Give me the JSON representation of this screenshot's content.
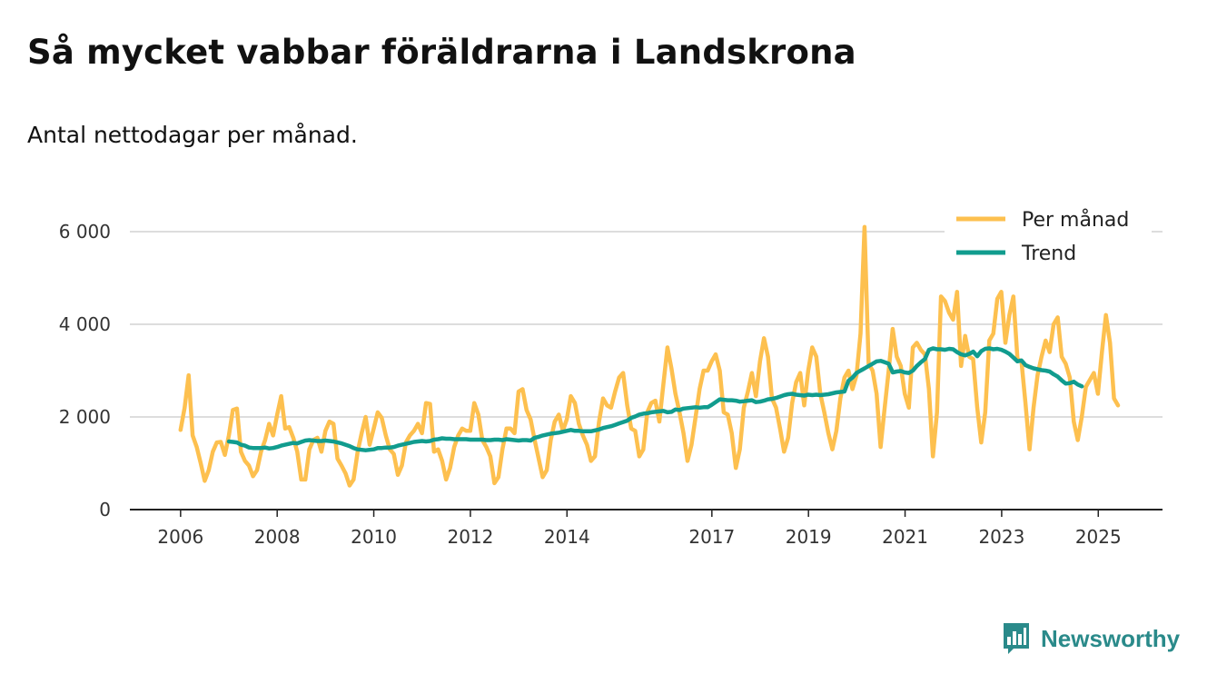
{
  "header": {
    "title": "Så mycket vabbar föräldrarna i Landskrona",
    "subtitle": "Antal nettodagar per månad."
  },
  "brand": {
    "name": "Newsworthy",
    "icon": "newsworthy-logo-icon",
    "color": "#2a8a8a"
  },
  "colors": {
    "monthly": "#fdc04f",
    "trend": "#119c8e",
    "grid": "#dddddd",
    "axis": "#222222"
  },
  "chart_data": {
    "type": "line",
    "title": "Så mycket vabbar föräldrarna i Landskrona",
    "subtitle": "Antal nettodagar per månad.",
    "xlabel": "",
    "ylabel": "",
    "ylim": [
      0,
      6000
    ],
    "xlim": [
      2004.95,
      2026.33
    ],
    "grid": true,
    "legend_position": "top-right",
    "y_ticks": [
      {
        "value": 0,
        "label": "0"
      },
      {
        "value": 2000,
        "label": "2 000"
      },
      {
        "value": 4000,
        "label": "4 000"
      },
      {
        "value": 6000,
        "label": "6 000"
      }
    ],
    "x_ticks": [
      {
        "value": 2006,
        "label": "2006"
      },
      {
        "value": 2008,
        "label": "2008"
      },
      {
        "value": 2010,
        "label": "2010"
      },
      {
        "value": 2012,
        "label": "2012"
      },
      {
        "value": 2014,
        "label": "2014"
      },
      {
        "value": 2017,
        "label": "2017"
      },
      {
        "value": 2019,
        "label": "2019"
      },
      {
        "value": 2021,
        "label": "2021"
      },
      {
        "value": 2023,
        "label": "2023"
      },
      {
        "value": 2025,
        "label": "2025"
      }
    ],
    "series": [
      {
        "name": "Per månad",
        "color": "#fdc04f",
        "start": 2006.0,
        "step": 0.0833,
        "values": [
          1720,
          2200,
          2900,
          1600,
          1350,
          1000,
          620,
          850,
          1250,
          1450,
          1460,
          1180,
          1600,
          2150,
          2180,
          1250,
          1050,
          950,
          720,
          850,
          1250,
          1500,
          1850,
          1600,
          2050,
          2450,
          1750,
          1780,
          1550,
          1250,
          650,
          650,
          1300,
          1500,
          1550,
          1250,
          1700,
          1900,
          1850,
          1100,
          950,
          780,
          520,
          650,
          1250,
          1650,
          2000,
          1400,
          1750,
          2100,
          1980,
          1600,
          1300,
          1200,
          750,
          950,
          1450,
          1600,
          1700,
          1850,
          1650,
          2300,
          2280,
          1250,
          1300,
          1050,
          650,
          900,
          1350,
          1600,
          1750,
          1700,
          1700,
          2300,
          2050,
          1500,
          1350,
          1150,
          570,
          700,
          1300,
          1750,
          1750,
          1650,
          2550,
          2600,
          2150,
          1950,
          1500,
          1100,
          700,
          850,
          1500,
          1900,
          2050,
          1700,
          1950,
          2450,
          2300,
          1850,
          1600,
          1400,
          1050,
          1150,
          1900,
          2400,
          2250,
          2200,
          2550,
          2850,
          2950,
          2250,
          1750,
          1700,
          1150,
          1300,
          2100,
          2300,
          2350,
          1900,
          2700,
          3500,
          3050,
          2500,
          2100,
          1650,
          1050,
          1400,
          2000,
          2600,
          3000,
          3000,
          3200,
          3350,
          3000,
          2100,
          2050,
          1650,
          900,
          1300,
          2200,
          2550,
          2950,
          2450,
          3200,
          3700,
          3300,
          2400,
          2200,
          1750,
          1250,
          1550,
          2300,
          2750,
          2950,
          2250,
          3000,
          3500,
          3300,
          2500,
          2100,
          1650,
          1300,
          1700,
          2400,
          2850,
          3000,
          2600,
          2900,
          3800,
          6100,
          3150,
          3000,
          2500,
          1350,
          2200,
          3000,
          3900,
          3300,
          3100,
          2500,
          2200,
          3500,
          3600,
          3450,
          3350,
          2600,
          1150,
          2100,
          4600,
          4500,
          4250,
          4100,
          4700,
          3100,
          3750,
          3300,
          3250,
          2200,
          1450,
          2100,
          3650,
          3800,
          4550,
          4700,
          3600,
          4200,
          4600,
          3250,
          3200,
          2300,
          1300,
          2200,
          2900,
          3300,
          3650,
          3400,
          4000,
          4150,
          3300,
          3150,
          2850,
          1900,
          1500,
          2000,
          2650,
          2800,
          2950,
          2500,
          3400,
          4200,
          3600,
          2400,
          2250
        ]
      },
      {
        "name": "Trend",
        "color": "#119c8e",
        "start": 2007.0,
        "step": 0.0833,
        "values": [
          1470,
          1460,
          1450,
          1400,
          1380,
          1340,
          1330,
          1330,
          1330,
          1340,
          1320,
          1330,
          1350,
          1380,
          1400,
          1420,
          1440,
          1430,
          1460,
          1490,
          1500,
          1490,
          1480,
          1480,
          1490,
          1480,
          1470,
          1450,
          1430,
          1400,
          1370,
          1330,
          1300,
          1290,
          1280,
          1290,
          1300,
          1330,
          1330,
          1340,
          1340,
          1350,
          1380,
          1400,
          1420,
          1440,
          1460,
          1470,
          1480,
          1470,
          1480,
          1510,
          1520,
          1540,
          1530,
          1530,
          1520,
          1520,
          1520,
          1520,
          1510,
          1510,
          1510,
          1510,
          1500,
          1500,
          1510,
          1510,
          1500,
          1520,
          1510,
          1500,
          1490,
          1500,
          1500,
          1490,
          1550,
          1570,
          1600,
          1620,
          1640,
          1650,
          1660,
          1680,
          1700,
          1720,
          1700,
          1700,
          1690,
          1690,
          1690,
          1710,
          1730,
          1760,
          1780,
          1800,
          1830,
          1860,
          1890,
          1920,
          1980,
          2010,
          2050,
          2070,
          2080,
          2100,
          2110,
          2120,
          2130,
          2100,
          2110,
          2160,
          2150,
          2180,
          2190,
          2200,
          2210,
          2200,
          2210,
          2210,
          2260,
          2320,
          2380,
          2370,
          2360,
          2360,
          2350,
          2330,
          2340,
          2350,
          2360,
          2320,
          2330,
          2350,
          2380,
          2390,
          2410,
          2440,
          2470,
          2490,
          2500,
          2480,
          2470,
          2460,
          2480,
          2470,
          2480,
          2470,
          2480,
          2490,
          2510,
          2530,
          2540,
          2550,
          2780,
          2850,
          2950,
          3000,
          3050,
          3100,
          3150,
          3200,
          3210,
          3180,
          3150,
          2960,
          2980,
          2990,
          2960,
          2950,
          3000,
          3100,
          3180,
          3250,
          3450,
          3480,
          3460,
          3460,
          3450,
          3470,
          3460,
          3400,
          3350,
          3330,
          3360,
          3410,
          3310,
          3420,
          3470,
          3480,
          3460,
          3470,
          3450,
          3410,
          3360,
          3280,
          3200,
          3220,
          3120,
          3080,
          3050,
          3030,
          3010,
          3000,
          2980,
          2920,
          2870,
          2790,
          2720,
          2730,
          2760,
          2700,
          2660
        ]
      }
    ]
  }
}
